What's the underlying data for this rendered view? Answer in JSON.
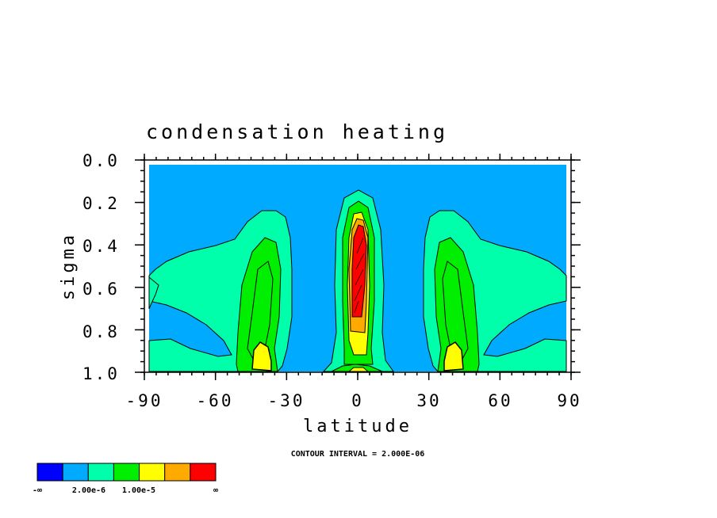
{
  "chart_data": {
    "type": "contour",
    "title": "condensation heating",
    "xlabel": "latitude",
    "ylabel": "sigma",
    "xlim": [
      -90,
      90
    ],
    "ylim": [
      1.0,
      0.0
    ],
    "x_ticks": [
      "-90",
      "-60",
      "-30",
      "0",
      "30",
      "60",
      "90"
    ],
    "y_ticks": [
      "0.0",
      "0.2",
      "0.4",
      "0.6",
      "0.8",
      "1.0"
    ],
    "contour_interval_text": "CONTOUR INTERVAL = 2.000E-06",
    "colorbar": {
      "colors": [
        "#0000ff",
        "#00aaff",
        "#00ffaa",
        "#00ee00",
        "#ffff00",
        "#ffaa00",
        "#ff0000"
      ],
      "labels": [
        "-∞",
        "2.00e-6",
        "1.00e-5",
        "∞"
      ]
    },
    "features": [
      {
        "name": "tropical maximum",
        "lat": 0,
        "sigma": 0.5,
        "level": "red"
      },
      {
        "name": "southern midlatitude maximum",
        "lat": -40,
        "sigma": 0.9,
        "level": "yellow"
      },
      {
        "name": "northern midlatitude maximum",
        "lat": 40,
        "sigma": 0.9,
        "level": "yellow"
      }
    ]
  }
}
